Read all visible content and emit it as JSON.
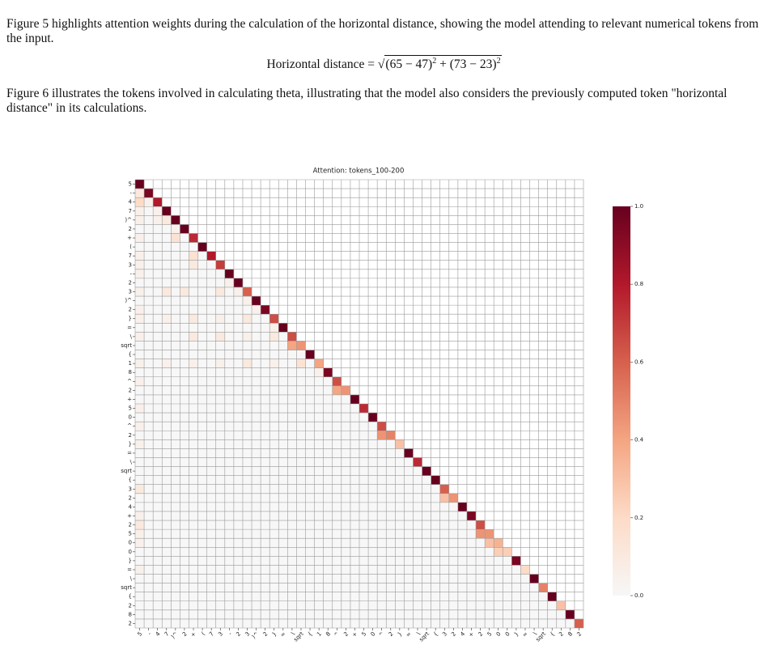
{
  "paragraph_1": "Figure 5 highlights attention weights during the calculation of the horizontal distance, showing the model attending to relevant numerical tokens from the input.",
  "equation": {
    "lhs": "Horizontal distance",
    "equals": "=",
    "radical": "√",
    "terms": [
      {
        "base": "(65 − 47)",
        "exp": "2"
      },
      {
        "base": "(73 − 23)",
        "exp": "2"
      }
    ],
    "plus": "+"
  },
  "paragraph_2": "Figure 6 illustrates the tokens involved in calculating theta, illustrating that the model also considers the previously computed token \"horizontal distance\" in its calculations.",
  "chart_data": {
    "type": "heatmap",
    "title": "Attention: tokens_100-200",
    "categories": [
      "5",
      "-",
      "4",
      "7",
      ")^",
      "2",
      "+",
      "(",
      "7",
      "3",
      "-",
      "2",
      "3",
      ")^",
      "2",
      "}",
      "=",
      "\\",
      "sqrt",
      "{",
      "1",
      "8",
      "^",
      "2",
      "+",
      "5",
      "0",
      "^",
      "2",
      "}",
      "=",
      "\\",
      "sqrt",
      "{",
      "3",
      "2",
      "4",
      "+",
      "2",
      "5",
      "0",
      "0",
      "}",
      "=",
      "\\",
      "sqrt",
      "{",
      "2",
      "8",
      "2"
    ],
    "colormap": [
      "#f7f7f7",
      "#fddbc7",
      "#f4a582",
      "#d6604d",
      "#b2182b",
      "#67001f"
    ],
    "clim": [
      0,
      1
    ],
    "cticks": [
      {
        "value": 0,
        "label": "0.0"
      },
      {
        "value": 0.2,
        "label": "0.2"
      },
      {
        "value": 0.4,
        "label": "0.4"
      },
      {
        "value": 0.6,
        "label": "0.6"
      },
      {
        "value": 0.8,
        "label": "0.8"
      },
      {
        "value": 1,
        "label": "1.0"
      }
    ],
    "grid": true,
    "values": [
      [
        1
      ],
      [
        0.1,
        0.95
      ],
      [
        0.2,
        0.05,
        0.8
      ],
      [
        0.05,
        0,
        0.05,
        1
      ],
      [
        0.05,
        0,
        0.05,
        0.1,
        1
      ],
      [
        0,
        0,
        0,
        0,
        0.05,
        1
      ],
      [
        0.05,
        0,
        0,
        0,
        0.15,
        0,
        0.75
      ],
      [
        0,
        0,
        0,
        0,
        0,
        0,
        0,
        1
      ],
      [
        0.05,
        0,
        0,
        0,
        0,
        0,
        0.15,
        0,
        0.8
      ],
      [
        0.05,
        0,
        0,
        0,
        0,
        0,
        0.1,
        0,
        0,
        0.7
      ],
      [
        0.05,
        0,
        0,
        0,
        0,
        0,
        0,
        0,
        0,
        0,
        1
      ],
      [
        0,
        0,
        0,
        0,
        0,
        0,
        0,
        0,
        0,
        0,
        0.05,
        1
      ],
      [
        0.05,
        0,
        0,
        0.1,
        0,
        0.1,
        0,
        0,
        0,
        0.1,
        0,
        0.05,
        0.6
      ],
      [
        0,
        0,
        0,
        0,
        0,
        0,
        0,
        0,
        0,
        0,
        0,
        0,
        0.05,
        1
      ],
      [
        0.05,
        0,
        0,
        0,
        0,
        0,
        0,
        0,
        0,
        0,
        0,
        0,
        0,
        0.05,
        0.95
      ],
      [
        0.05,
        0,
        0,
        0.05,
        0,
        0,
        0.1,
        0,
        0,
        0.05,
        0,
        0,
        0.1,
        0,
        0,
        0.65
      ],
      [
        0,
        0,
        0,
        0,
        0,
        0,
        0,
        0,
        0,
        0,
        0,
        0,
        0,
        0,
        0,
        0.05,
        1
      ],
      [
        0.05,
        0,
        0,
        0,
        0,
        0,
        0.1,
        0,
        0,
        0.1,
        0,
        0,
        0.05,
        0,
        0,
        0.1,
        0,
        0.65
      ],
      [
        0,
        0,
        0,
        0,
        0,
        0,
        0,
        0,
        0,
        0,
        0,
        0,
        0,
        0,
        0,
        0,
        0,
        0.4,
        0.45
      ],
      [
        0,
        0,
        0,
        0,
        0,
        0,
        0,
        0,
        0,
        0,
        0,
        0,
        0,
        0,
        0,
        0,
        0,
        0,
        0,
        1
      ],
      [
        0.05,
        0,
        0,
        0.05,
        0,
        0,
        0.05,
        0,
        0,
        0.05,
        0,
        0,
        0.1,
        0,
        0,
        0.05,
        0,
        0,
        0.15,
        0,
        0.4
      ],
      [
        0,
        0,
        0,
        0,
        0,
        0,
        0,
        0,
        0,
        0,
        0,
        0,
        0,
        0,
        0,
        0,
        0,
        0,
        0,
        0,
        0.05,
        0.95
      ],
      [
        0.05,
        0,
        0,
        0,
        0,
        0,
        0,
        0,
        0,
        0,
        0,
        0,
        0,
        0,
        0,
        0,
        0,
        0,
        0,
        0,
        0,
        0,
        0.65
      ],
      [
        0,
        0,
        0,
        0,
        0,
        0,
        0,
        0,
        0,
        0,
        0,
        0,
        0,
        0,
        0,
        0,
        0,
        0,
        0,
        0,
        0,
        0,
        0.4,
        0.45
      ],
      [
        0,
        0,
        0,
        0,
        0,
        0,
        0,
        0,
        0,
        0,
        0,
        0,
        0,
        0,
        0,
        0,
        0,
        0,
        0,
        0,
        0,
        0,
        0,
        0,
        1
      ],
      [
        0.05,
        0,
        0,
        0,
        0,
        0,
        0,
        0,
        0,
        0,
        0,
        0,
        0,
        0,
        0,
        0,
        0,
        0,
        0,
        0,
        0,
        0,
        0,
        0,
        0,
        0.75
      ],
      [
        0,
        0,
        0,
        0,
        0,
        0,
        0,
        0,
        0,
        0,
        0,
        0,
        0,
        0,
        0,
        0,
        0,
        0,
        0,
        0,
        0,
        0,
        0,
        0,
        0,
        0,
        1
      ],
      [
        0.05,
        0,
        0,
        0,
        0,
        0,
        0,
        0,
        0,
        0,
        0,
        0,
        0,
        0,
        0,
        0,
        0,
        0,
        0,
        0,
        0,
        0,
        0,
        0,
        0,
        0,
        0,
        0.65
      ],
      [
        0,
        0,
        0,
        0,
        0,
        0,
        0,
        0,
        0,
        0,
        0,
        0,
        0,
        0,
        0,
        0,
        0,
        0,
        0,
        0,
        0,
        0,
        0,
        0,
        0,
        0,
        0,
        0.45,
        0.5
      ],
      [
        0.05,
        0,
        0,
        0,
        0,
        0,
        0,
        0,
        0,
        0,
        0,
        0,
        0,
        0,
        0,
        0,
        0,
        0,
        0,
        0,
        0,
        0,
        0,
        0,
        0,
        0,
        0,
        0,
        0,
        0.3
      ],
      [
        0,
        0,
        0,
        0,
        0,
        0,
        0,
        0,
        0,
        0,
        0,
        0,
        0,
        0,
        0,
        0,
        0,
        0,
        0,
        0,
        0,
        0,
        0,
        0,
        0,
        0,
        0,
        0,
        0,
        0,
        1
      ],
      [
        0,
        0,
        0,
        0,
        0,
        0,
        0,
        0,
        0,
        0,
        0,
        0,
        0,
        0,
        0,
        0,
        0,
        0,
        0,
        0,
        0,
        0,
        0,
        0,
        0,
        0,
        0,
        0,
        0,
        0,
        0,
        0.75
      ],
      [
        0,
        0,
        0,
        0,
        0,
        0,
        0,
        0,
        0,
        0,
        0,
        0,
        0,
        0,
        0,
        0,
        0,
        0,
        0,
        0,
        0,
        0,
        0,
        0,
        0,
        0,
        0,
        0,
        0,
        0,
        0,
        0,
        1
      ],
      [
        0,
        0,
        0,
        0,
        0,
        0,
        0,
        0,
        0,
        0,
        0,
        0,
        0,
        0,
        0,
        0,
        0,
        0,
        0,
        0,
        0,
        0,
        0,
        0,
        0,
        0,
        0,
        0,
        0,
        0,
        0,
        0,
        0,
        1
      ],
      [
        0.1,
        0,
        0,
        0,
        0,
        0,
        0,
        0,
        0,
        0,
        0,
        0,
        0,
        0,
        0,
        0,
        0,
        0,
        0,
        0,
        0,
        0,
        0,
        0,
        0,
        0,
        0,
        0,
        0,
        0,
        0,
        0,
        0,
        0,
        0.6
      ],
      [
        0,
        0,
        0,
        0,
        0,
        0,
        0,
        0,
        0,
        0,
        0,
        0,
        0,
        0,
        0,
        0,
        0,
        0,
        0,
        0,
        0,
        0,
        0,
        0,
        0,
        0,
        0,
        0,
        0,
        0,
        0,
        0,
        0,
        0,
        0.3,
        0.45
      ],
      [
        0,
        0,
        0,
        0,
        0,
        0,
        0,
        0,
        0,
        0,
        0,
        0,
        0,
        0,
        0,
        0,
        0,
        0,
        0,
        0,
        0,
        0,
        0,
        0,
        0,
        0,
        0,
        0,
        0,
        0,
        0,
        0,
        0,
        0,
        0,
        0,
        1
      ],
      [
        0.05,
        0,
        0,
        0,
        0,
        0,
        0,
        0,
        0,
        0,
        0,
        0,
        0,
        0,
        0,
        0,
        0,
        0,
        0,
        0,
        0,
        0,
        0,
        0,
        0,
        0,
        0,
        0,
        0,
        0,
        0,
        0,
        0,
        0,
        0,
        0,
        0,
        0.95
      ],
      [
        0.1,
        0,
        0,
        0,
        0,
        0,
        0,
        0,
        0,
        0,
        0,
        0,
        0,
        0,
        0,
        0,
        0,
        0,
        0,
        0,
        0,
        0,
        0,
        0,
        0,
        0,
        0,
        0,
        0,
        0,
        0,
        0,
        0,
        0,
        0,
        0,
        0,
        0,
        0.65
      ],
      [
        0.05,
        0,
        0,
        0,
        0,
        0,
        0,
        0,
        0,
        0,
        0,
        0,
        0,
        0,
        0,
        0,
        0,
        0,
        0,
        0,
        0,
        0,
        0,
        0,
        0,
        0,
        0,
        0,
        0,
        0,
        0,
        0,
        0,
        0,
        0,
        0,
        0,
        0,
        0.45,
        0.45
      ],
      [
        0.05,
        0,
        0,
        0,
        0,
        0,
        0,
        0,
        0,
        0,
        0,
        0,
        0,
        0,
        0,
        0,
        0,
        0,
        0,
        0,
        0,
        0,
        0,
        0,
        0,
        0,
        0,
        0,
        0,
        0,
        0,
        0,
        0,
        0,
        0,
        0,
        0,
        0,
        0,
        0.3,
        0.35
      ],
      [
        0,
        0,
        0,
        0,
        0,
        0,
        0,
        0,
        0,
        0,
        0,
        0,
        0,
        0,
        0,
        0,
        0,
        0,
        0,
        0,
        0,
        0,
        0,
        0,
        0,
        0,
        0,
        0,
        0,
        0,
        0,
        0,
        0,
        0,
        0,
        0,
        0,
        0,
        0,
        0,
        0.25,
        0.25
      ],
      [
        0,
        0,
        0,
        0,
        0,
        0,
        0,
        0,
        0,
        0,
        0,
        0,
        0,
        0,
        0,
        0,
        0,
        0,
        0,
        0,
        0,
        0,
        0,
        0,
        0,
        0,
        0,
        0,
        0,
        0,
        0,
        0,
        0,
        0,
        0,
        0,
        0,
        0,
        0,
        0,
        0,
        0,
        0.95
      ],
      [
        0.05,
        0,
        0,
        0,
        0,
        0,
        0,
        0,
        0,
        0,
        0,
        0,
        0,
        0,
        0,
        0,
        0,
        0,
        0,
        0,
        0,
        0,
        0,
        0,
        0,
        0,
        0,
        0,
        0,
        0,
        0,
        0,
        0,
        0,
        0,
        0,
        0,
        0,
        0,
        0,
        0,
        0,
        0,
        0.2
      ],
      [
        0,
        0,
        0,
        0,
        0,
        0,
        0,
        0,
        0,
        0,
        0,
        0,
        0,
        0,
        0,
        0,
        0,
        0,
        0,
        0,
        0,
        0,
        0,
        0,
        0,
        0,
        0,
        0,
        0,
        0,
        0,
        0,
        0,
        0,
        0,
        0,
        0,
        0,
        0,
        0,
        0,
        0,
        0,
        0,
        1
      ],
      [
        0,
        0,
        0,
        0,
        0,
        0,
        0,
        0,
        0,
        0,
        0,
        0,
        0,
        0,
        0,
        0,
        0,
        0,
        0,
        0,
        0,
        0,
        0,
        0,
        0,
        0,
        0,
        0,
        0,
        0,
        0,
        0,
        0,
        0,
        0,
        0,
        0,
        0,
        0,
        0,
        0,
        0,
        0,
        0,
        0,
        0.5
      ],
      [
        0,
        0,
        0,
        0,
        0,
        0,
        0,
        0,
        0,
        0,
        0,
        0,
        0,
        0,
        0,
        0,
        0,
        0,
        0,
        0,
        0,
        0,
        0,
        0,
        0,
        0,
        0,
        0,
        0,
        0,
        0,
        0,
        0,
        0,
        0,
        0,
        0,
        0,
        0,
        0,
        0,
        0,
        0,
        0,
        0,
        0,
        1
      ],
      [
        0,
        0,
        0,
        0,
        0,
        0,
        0,
        0,
        0,
        0,
        0,
        0,
        0,
        0,
        0,
        0,
        0,
        0,
        0,
        0,
        0,
        0,
        0,
        0,
        0,
        0,
        0,
        0,
        0,
        0,
        0,
        0,
        0,
        0,
        0,
        0,
        0,
        0,
        0,
        0,
        0,
        0,
        0,
        0,
        0,
        0,
        0,
        0.3
      ],
      [
        0,
        0,
        0,
        0,
        0,
        0,
        0,
        0,
        0,
        0,
        0,
        0,
        0,
        0,
        0,
        0,
        0,
        0,
        0,
        0,
        0,
        0,
        0,
        0,
        0,
        0,
        0,
        0,
        0,
        0,
        0,
        0,
        0,
        0,
        0,
        0,
        0,
        0,
        0,
        0,
        0,
        0,
        0,
        0,
        0,
        0,
        0,
        0,
        1
      ],
      [
        0,
        0,
        0,
        0,
        0,
        0,
        0,
        0,
        0,
        0,
        0,
        0,
        0,
        0,
        0,
        0,
        0,
        0,
        0,
        0,
        0,
        0,
        0,
        0,
        0,
        0,
        0,
        0,
        0,
        0,
        0,
        0,
        0,
        0,
        0,
        0,
        0,
        0,
        0,
        0,
        0,
        0,
        0,
        0,
        0,
        0,
        0,
        0,
        0,
        0.6
      ]
    ]
  }
}
